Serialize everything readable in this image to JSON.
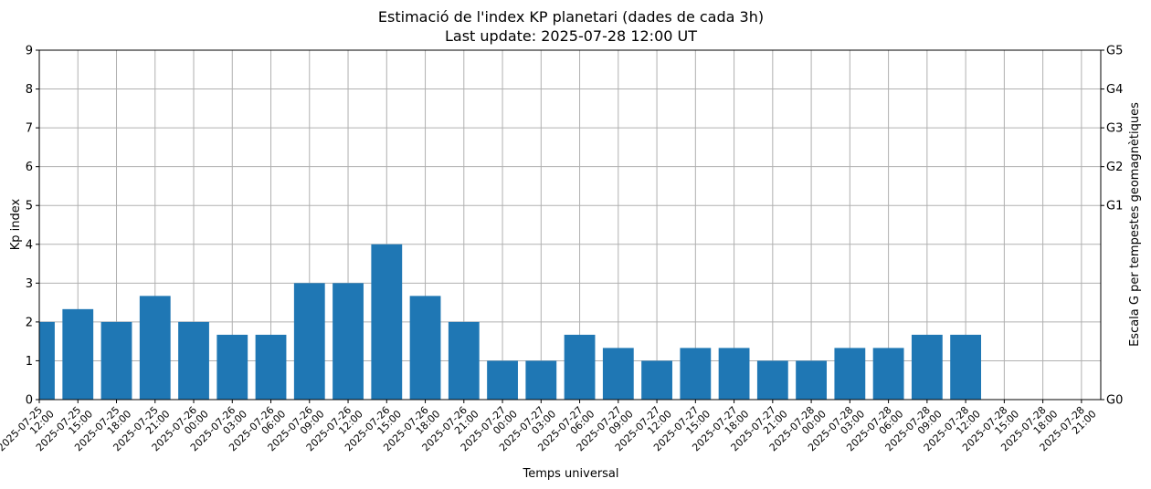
{
  "chart_data": {
    "type": "bar",
    "title": "Estimació de l'index KP planetari (dades de cada 3h)",
    "subtitle": "Last update: 2025-07-28 12:00 UT",
    "xlabel": "Temps universal",
    "ylabel": "Kp index",
    "y2label": "Escala G per tempestes geomagnètiques",
    "ylim": [
      0,
      9
    ],
    "yticks": [
      "0",
      "1",
      "2",
      "3",
      "4",
      "5",
      "6",
      "7",
      "8",
      "9"
    ],
    "g_scale": [
      {
        "label": "G0",
        "kp": 0
      },
      {
        "label": "G1",
        "kp": 5
      },
      {
        "label": "G2",
        "kp": 6
      },
      {
        "label": "G3",
        "kp": 7
      },
      {
        "label": "G4",
        "kp": 8
      },
      {
        "label": "G5",
        "kp": 9
      }
    ],
    "grid": true,
    "bar_color": "#1f77b4",
    "categories": [
      {
        "date": "2025-07-25",
        "time": "12:00"
      },
      {
        "date": "2025-07-25",
        "time": "15:00"
      },
      {
        "date": "2025-07-25",
        "time": "18:00"
      },
      {
        "date": "2025-07-25",
        "time": "21:00"
      },
      {
        "date": "2025-07-26",
        "time": "00:00"
      },
      {
        "date": "2025-07-26",
        "time": "03:00"
      },
      {
        "date": "2025-07-26",
        "time": "06:00"
      },
      {
        "date": "2025-07-26",
        "time": "09:00"
      },
      {
        "date": "2025-07-26",
        "time": "12:00"
      },
      {
        "date": "2025-07-26",
        "time": "15:00"
      },
      {
        "date": "2025-07-26",
        "time": "18:00"
      },
      {
        "date": "2025-07-26",
        "time": "21:00"
      },
      {
        "date": "2025-07-27",
        "time": "00:00"
      },
      {
        "date": "2025-07-27",
        "time": "03:00"
      },
      {
        "date": "2025-07-27",
        "time": "06:00"
      },
      {
        "date": "2025-07-27",
        "time": "09:00"
      },
      {
        "date": "2025-07-27",
        "time": "12:00"
      },
      {
        "date": "2025-07-27",
        "time": "15:00"
      },
      {
        "date": "2025-07-27",
        "time": "18:00"
      },
      {
        "date": "2025-07-27",
        "time": "21:00"
      },
      {
        "date": "2025-07-28",
        "time": "00:00"
      },
      {
        "date": "2025-07-28",
        "time": "03:00"
      },
      {
        "date": "2025-07-28",
        "time": "06:00"
      },
      {
        "date": "2025-07-28",
        "time": "09:00"
      },
      {
        "date": "2025-07-28",
        "time": "12:00"
      },
      {
        "date": "2025-07-28",
        "time": "15:00"
      },
      {
        "date": "2025-07-28",
        "time": "18:00"
      },
      {
        "date": "2025-07-28",
        "time": "21:00"
      }
    ],
    "values": [
      2,
      2.33,
      2,
      2.67,
      2,
      1.67,
      1.67,
      3,
      3,
      4,
      2.67,
      2,
      1,
      1,
      1.67,
      1.33,
      1,
      1.33,
      1.33,
      1,
      1,
      1.33,
      1.33,
      1.67,
      1.67,
      null,
      null,
      null
    ]
  }
}
